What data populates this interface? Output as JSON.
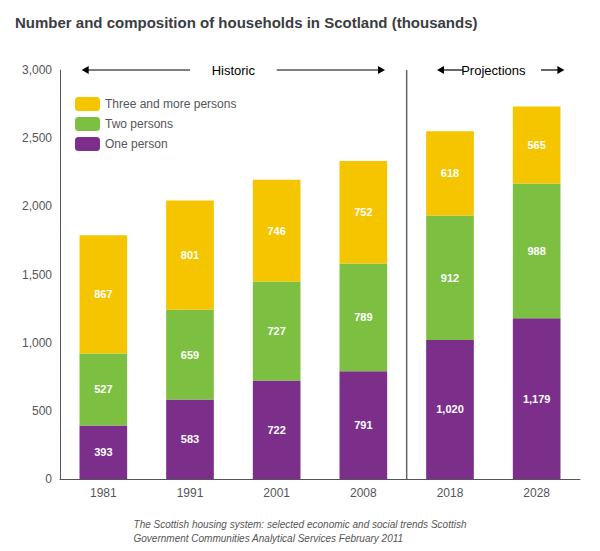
{
  "chart_data": {
    "type": "bar",
    "title": "Number and composition of households in Scotland (thousands)",
    "categories": [
      "1981",
      "1991",
      "2001",
      "2008",
      "2018",
      "2028"
    ],
    "series": [
      {
        "name": "One person",
        "color": "#7b2f8b",
        "values": [
          393,
          583,
          722,
          791,
          1020,
          1179
        ],
        "value_labels": [
          "393",
          "583",
          "722",
          "791",
          "1,020",
          "1,179"
        ]
      },
      {
        "name": "Two persons",
        "color": "#7dc041",
        "values": [
          527,
          659,
          727,
          789,
          912,
          988
        ]
      },
      {
        "name": "Three and more persons",
        "color": "#f5c500",
        "values": [
          867,
          801,
          746,
          752,
          618,
          565
        ]
      }
    ],
    "stacked": true,
    "data_labels": true,
    "legend": "upper left",
    "grid": false,
    "ylim": [
      0,
      3000
    ],
    "yticks": [
      0,
      500,
      {
        "value": 1000,
        "label": "1,000"
      },
      {
        "value": 1500,
        "label": "1,500"
      },
      {
        "value": 2000,
        "label": "2,000"
      },
      {
        "value": 2500,
        "label": "2,500"
      },
      {
        "value": 3000,
        "label": "3,000"
      }
    ],
    "annotations": [
      "Historic",
      "Projections",
      "The Scottish housing system: selected economic and social trends Scottish\nGovernment Communities Analytical Services February 2011"
    ]
  }
}
